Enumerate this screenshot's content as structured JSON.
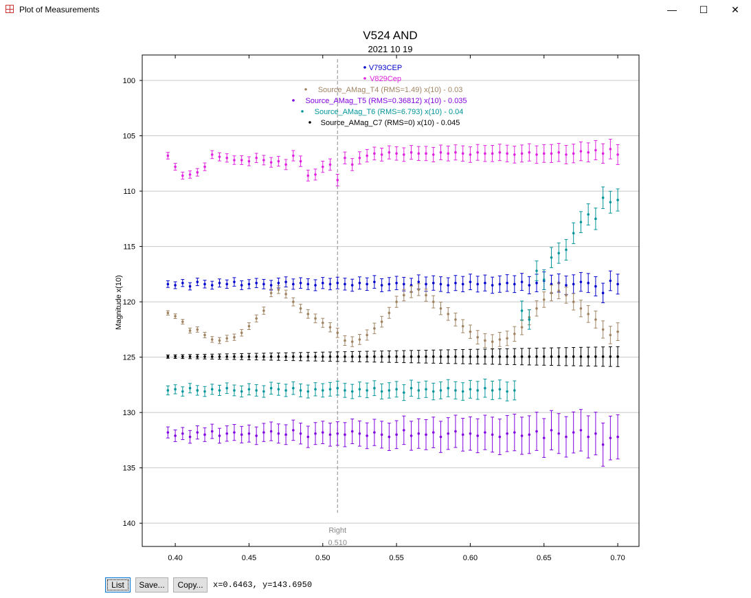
{
  "window": {
    "title": "Plot of Measurements",
    "minimize": "—",
    "maximize": "☐",
    "close": "✕"
  },
  "buttons": {
    "list": "List",
    "save": "Save...",
    "copy": "Copy..."
  },
  "cursor_readout": "x=0.6463, y=143.6950",
  "chart_data": {
    "type": "scatter",
    "title": "V524 AND",
    "subtitle": "2021 10 19",
    "xlabel": "",
    "ylabel": "Magnitude x(10)",
    "xlim": [
      0.3776,
      0.7144
    ],
    "ylim": [
      97.7,
      142.1
    ],
    "y_inverted": true,
    "grid": "horizontal",
    "legend_placement": "top-center",
    "xticks": [
      "0.40",
      "0.45",
      "0.50",
      "0.55",
      "0.60",
      "0.65",
      "0.70"
    ],
    "yticks": [
      "100",
      "105",
      "110",
      "115",
      "120",
      "125",
      "130",
      "135",
      "140"
    ],
    "marker": {
      "label": "Right",
      "value": "0.510",
      "x": 0.51
    },
    "x": [
      0.395,
      0.4,
      0.405,
      0.41,
      0.415,
      0.42,
      0.425,
      0.43,
      0.435,
      0.44,
      0.445,
      0.45,
      0.455,
      0.46,
      0.465,
      0.47,
      0.475,
      0.48,
      0.485,
      0.49,
      0.495,
      0.5,
      0.505,
      0.51,
      0.515,
      0.52,
      0.525,
      0.53,
      0.535,
      0.54,
      0.545,
      0.55,
      0.555,
      0.56,
      0.565,
      0.57,
      0.575,
      0.58,
      0.585,
      0.59,
      0.595,
      0.6,
      0.605,
      0.61,
      0.615,
      0.62,
      0.625,
      0.63,
      0.635,
      0.64,
      0.645,
      0.65,
      0.655,
      0.66,
      0.665,
      0.67,
      0.675,
      0.68,
      0.685,
      0.69,
      0.695,
      0.7
    ],
    "series": [
      {
        "name": "V793CEP",
        "color": "#0000cc",
        "err": [
          0.3,
          0.9
        ],
        "values": [
          118.4,
          118.5,
          118.3,
          118.6,
          118.2,
          118.4,
          118.5,
          118.3,
          118.4,
          118.2,
          118.5,
          118.4,
          118.3,
          118.4,
          118.5,
          118.3,
          118.2,
          118.4,
          118.3,
          118.4,
          118.5,
          118.3,
          118.4,
          118.3,
          118.4,
          118.5,
          118.3,
          118.4,
          118.2,
          118.5,
          118.4,
          118.3,
          118.4,
          118.5,
          118.2,
          118.4,
          118.3,
          118.4,
          118.5,
          118.3,
          118.4,
          118.2,
          118.4,
          118.3,
          118.5,
          118.4,
          118.3,
          118.4,
          118.2,
          118.5,
          118.3,
          118.1,
          118.4,
          118.3,
          118.5,
          118.4,
          118.2,
          118.3,
          118.6,
          119.2,
          118.1,
          118.4
        ]
      },
      {
        "name": "V829Cep",
        "color": "#e020e0",
        "err": [
          0.3,
          0.9
        ],
        "values": [
          106.8,
          107.8,
          108.6,
          108.5,
          108.3,
          107.8,
          106.7,
          106.9,
          107.0,
          107.2,
          107.2,
          107.3,
          107.0,
          107.2,
          107.4,
          107.3,
          107.6,
          106.8,
          107.3,
          108.6,
          108.5,
          107.8,
          107.6,
          109.0,
          107.0,
          107.6,
          107.0,
          106.8,
          106.6,
          106.7,
          106.5,
          106.6,
          106.7,
          106.5,
          106.6,
          106.6,
          106.7,
          106.5,
          106.6,
          106.5,
          106.6,
          106.7,
          106.5,
          106.6,
          106.6,
          106.5,
          106.6,
          106.7,
          106.6,
          106.5,
          106.7,
          106.6,
          106.6,
          106.5,
          106.7,
          106.6,
          106.4,
          106.5,
          106.3,
          106.6,
          106.2,
          106.7
        ]
      },
      {
        "name": "Source_AMag_T4 (RMS=1.49) x(10) - 0.03",
        "color": "#a08462",
        "err": [
          0.2,
          0.8
        ],
        "values": [
          121.0,
          121.3,
          121.8,
          122.6,
          122.5,
          123.0,
          123.4,
          123.5,
          123.3,
          123.2,
          122.8,
          122.2,
          121.5,
          120.8,
          119.2,
          118.9,
          119.3,
          120.0,
          120.6,
          121.1,
          121.5,
          121.9,
          122.3,
          122.8,
          123.5,
          123.6,
          123.4,
          123.0,
          122.4,
          121.8,
          121.0,
          120.0,
          119.4,
          119.1,
          118.9,
          119.4,
          120.0,
          120.6,
          121.1,
          121.6,
          122.2,
          122.7,
          123.2,
          123.5,
          123.6,
          123.4,
          123.3,
          122.9,
          122.3,
          121.4,
          120.6,
          119.8,
          119.2,
          119.0,
          119.4,
          120.0,
          120.6,
          121.1,
          121.6,
          122.5,
          123.0,
          122.7
        ]
      },
      {
        "name": "Source_AMag_T5 (RMS=0.36812) x(10) - 0.035",
        "color": "#8000e0",
        "err": [
          0.5,
          2.0
        ],
        "values": [
          131.8,
          132.1,
          131.9,
          132.2,
          131.8,
          132.0,
          131.7,
          132.1,
          131.9,
          131.8,
          132.0,
          131.9,
          132.1,
          131.8,
          131.7,
          131.9,
          132.0,
          131.6,
          131.9,
          132.2,
          131.9,
          131.8,
          132.0,
          131.9,
          132.0,
          131.7,
          131.9,
          132.1,
          131.8,
          132.0,
          132.2,
          132.0,
          131.6,
          132.1,
          131.9,
          132.0,
          131.8,
          132.2,
          131.9,
          131.7,
          132.0,
          131.9,
          132.1,
          131.8,
          132.0,
          132.2,
          131.9,
          131.8,
          132.1,
          132.0,
          131.7,
          132.3,
          131.6,
          131.9,
          132.2,
          131.8,
          131.6,
          132.2,
          131.9,
          132.9,
          132.3,
          132.2
        ]
      },
      {
        "name": "Source_AMag_T6 (RMS=6.793) x(10) - 0.04",
        "color": "#00959a",
        "err": [
          0.4,
          1.0
        ],
        "values": [
          128.0,
          127.9,
          128.1,
          127.8,
          128.0,
          128.1,
          127.9,
          128.0,
          127.8,
          128.0,
          128.1,
          127.9,
          128.0,
          128.1,
          127.8,
          127.9,
          128.0,
          127.8,
          128.0,
          128.1,
          127.9,
          128.0,
          127.9,
          127.8,
          128.0,
          128.1,
          127.9,
          128.0,
          127.8,
          128.1,
          128.0,
          127.9,
          128.2,
          127.8,
          128.0,
          127.9,
          128.1,
          128.0,
          127.8,
          128.0,
          128.1,
          127.9,
          128.0,
          127.8,
          128.0,
          127.9,
          128.1,
          128.0,
          120.8,
          121.6,
          117.2,
          118.0,
          116.0,
          115.6,
          115.3,
          113.8,
          112.8,
          112.1,
          112.5,
          110.6,
          111.0,
          110.8
        ]
      },
      {
        "name": "Source_AMag_C7 (RMS=0) x(10) - 0.045",
        "color": "#000000",
        "err": [
          0.15,
          0.9
        ],
        "values": [
          124.95,
          124.95,
          124.95,
          124.95,
          124.95,
          124.95,
          124.95,
          124.95,
          124.95,
          124.95,
          124.95,
          124.95,
          124.95,
          124.95,
          124.95,
          124.95,
          124.95,
          124.95,
          124.95,
          124.95,
          124.95,
          124.95,
          124.95,
          124.95,
          124.95,
          124.95,
          124.95,
          124.95,
          124.95,
          124.95,
          124.95,
          124.95,
          124.95,
          124.95,
          124.95,
          124.95,
          124.95,
          124.95,
          124.95,
          124.95,
          124.95,
          124.95,
          124.95,
          124.95,
          124.95,
          124.95,
          124.95,
          124.95,
          124.95,
          124.95,
          124.95,
          124.95,
          124.95,
          124.95,
          124.95,
          124.95,
          124.95,
          124.95,
          124.95,
          124.95,
          124.95,
          124.95
        ]
      }
    ]
  }
}
